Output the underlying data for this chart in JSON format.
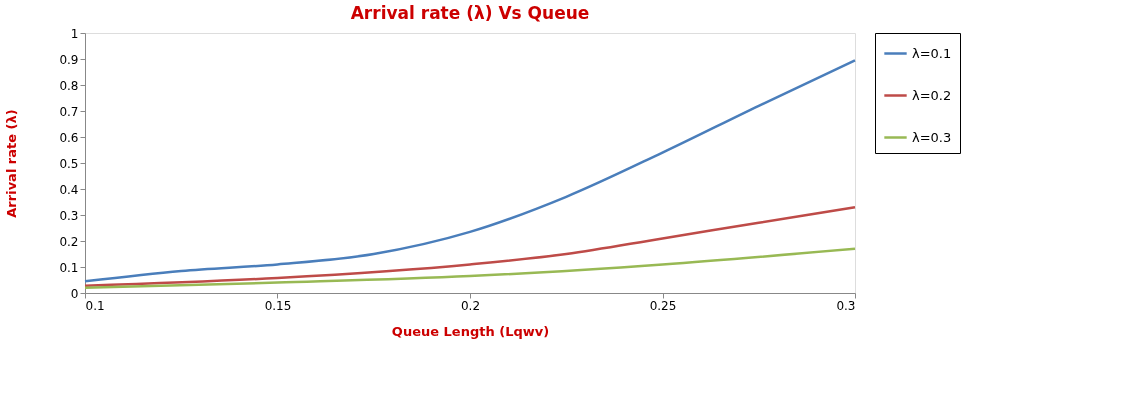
{
  "chart_data": {
    "type": "line",
    "title": "Arrival rate (λ) Vs Queue",
    "xlabel": "Queue Length (Lqwv)",
    "ylabel": "Arrival rate (λ)",
    "xlim": [
      0.1,
      0.3
    ],
    "xticks": [
      0.1,
      0.15,
      0.2,
      0.25,
      0.3
    ],
    "ylim": [
      0,
      1
    ],
    "yticks": [
      0,
      0.1,
      0.2,
      0.3,
      0.4,
      0.5,
      0.6,
      0.7,
      0.8,
      0.9,
      1
    ],
    "grid": false,
    "legend": "right",
    "marker": "none",
    "line_style": "solid",
    "series": [
      {
        "name": "λ=0.1",
        "color": "#4a7ebb",
        "x": [
          0.1,
          0.125,
          0.15,
          0.175,
          0.2,
          0.225,
          0.25,
          0.275,
          0.3
        ],
        "values": [
          0.045,
          0.085,
          0.11,
          0.15,
          0.235,
          0.37,
          0.54,
          0.72,
          0.895
        ]
      },
      {
        "name": "λ=0.2",
        "color": "#be4b48",
        "x": [
          0.1,
          0.15,
          0.2,
          0.225,
          0.25,
          0.275,
          0.3
        ],
        "values": [
          0.028,
          0.058,
          0.11,
          0.15,
          0.21,
          0.27,
          0.33
        ]
      },
      {
        "name": "λ=0.3",
        "color": "#98b954",
        "x": [
          0.1,
          0.15,
          0.2,
          0.25,
          0.3
        ],
        "values": [
          0.02,
          0.04,
          0.065,
          0.11,
          0.17
        ]
      }
    ]
  }
}
